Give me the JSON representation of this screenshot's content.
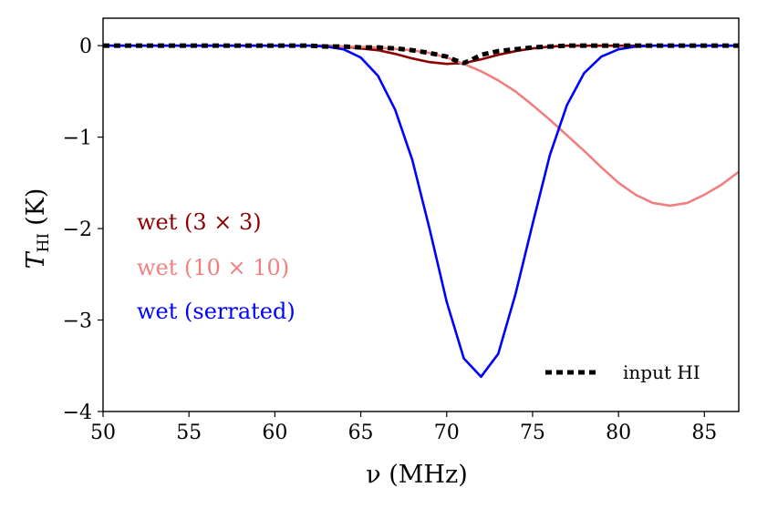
{
  "chart_data": {
    "type": "line",
    "title": "",
    "xlabel": "ν (MHz)",
    "ylabel": "T_HI (K)",
    "ylabel_main": "T",
    "ylabel_sub": "HI",
    "ylabel_unit": "(K)",
    "xlim": [
      50,
      87
    ],
    "ylim": [
      -4,
      0.3
    ],
    "xticks": [
      50,
      55,
      60,
      65,
      70,
      75,
      80,
      85
    ],
    "yticks": [
      0,
      -1,
      -2,
      -3,
      -4
    ],
    "ytick_labels": [
      "0",
      "−1",
      "−2",
      "−3",
      "−4"
    ],
    "grid": false,
    "legend_left": [
      {
        "label": "wet (3 × 3)",
        "color": "#8b0000"
      },
      {
        "label": "wet (10 × 10)",
        "color": "#f08080"
      },
      {
        "label": "wet (serrated)",
        "color": "#0000ff"
      }
    ],
    "legend_right": {
      "label": "input HI",
      "color": "#000000"
    },
    "series": [
      {
        "name": "input HI",
        "color": "#000000",
        "dashed": true,
        "x": [
          50,
          62,
          63,
          64,
          65,
          66,
          67,
          68,
          69,
          70,
          70.5,
          71,
          71.5,
          72,
          73,
          74,
          75,
          76,
          77,
          78,
          80,
          87
        ],
        "y": [
          0,
          0,
          -0.01,
          -0.01,
          -0.02,
          -0.02,
          -0.03,
          -0.05,
          -0.08,
          -0.12,
          -0.16,
          -0.19,
          -0.15,
          -0.1,
          -0.06,
          -0.04,
          -0.02,
          -0.01,
          0,
          0,
          0,
          0
        ]
      },
      {
        "name": "wet (3 × 3)",
        "color": "#8b0000",
        "dashed": false,
        "x": [
          50,
          63,
          64,
          65,
          66,
          67,
          68,
          69,
          70,
          71,
          72,
          73,
          74,
          75,
          76,
          77,
          78,
          80,
          87
        ],
        "y": [
          0,
          0,
          -0.01,
          -0.03,
          -0.05,
          -0.09,
          -0.14,
          -0.18,
          -0.2,
          -0.19,
          -0.15,
          -0.1,
          -0.06,
          -0.03,
          -0.01,
          0,
          0,
          0,
          0
        ]
      },
      {
        "name": "wet (10 × 10)",
        "color": "#f08080",
        "dashed": false,
        "x": [
          50,
          62,
          64,
          66,
          68,
          69,
          70,
          71,
          72,
          73,
          74,
          75,
          76,
          77,
          78,
          79,
          80,
          81,
          82,
          83,
          84,
          85,
          86,
          87
        ],
        "y": [
          0,
          0,
          -0.01,
          -0.02,
          -0.05,
          -0.08,
          -0.13,
          -0.2,
          -0.28,
          -0.38,
          -0.5,
          -0.65,
          -0.81,
          -0.98,
          -1.15,
          -1.33,
          -1.5,
          -1.63,
          -1.72,
          -1.75,
          -1.72,
          -1.63,
          -1.52,
          -1.38
        ]
      },
      {
        "name": "wet (serrated)",
        "color": "#0000ff",
        "dashed": false,
        "x": [
          50,
          62,
          63,
          64,
          65,
          66,
          67,
          68,
          69,
          70,
          71,
          72,
          73,
          74,
          75,
          76,
          77,
          78,
          79,
          80,
          81,
          82,
          87
        ],
        "y": [
          0,
          0,
          -0.01,
          -0.04,
          -0.13,
          -0.33,
          -0.7,
          -1.25,
          -2.0,
          -2.8,
          -3.42,
          -3.62,
          -3.37,
          -2.72,
          -1.95,
          -1.2,
          -0.65,
          -0.3,
          -0.12,
          -0.04,
          -0.01,
          0,
          0
        ]
      }
    ]
  }
}
